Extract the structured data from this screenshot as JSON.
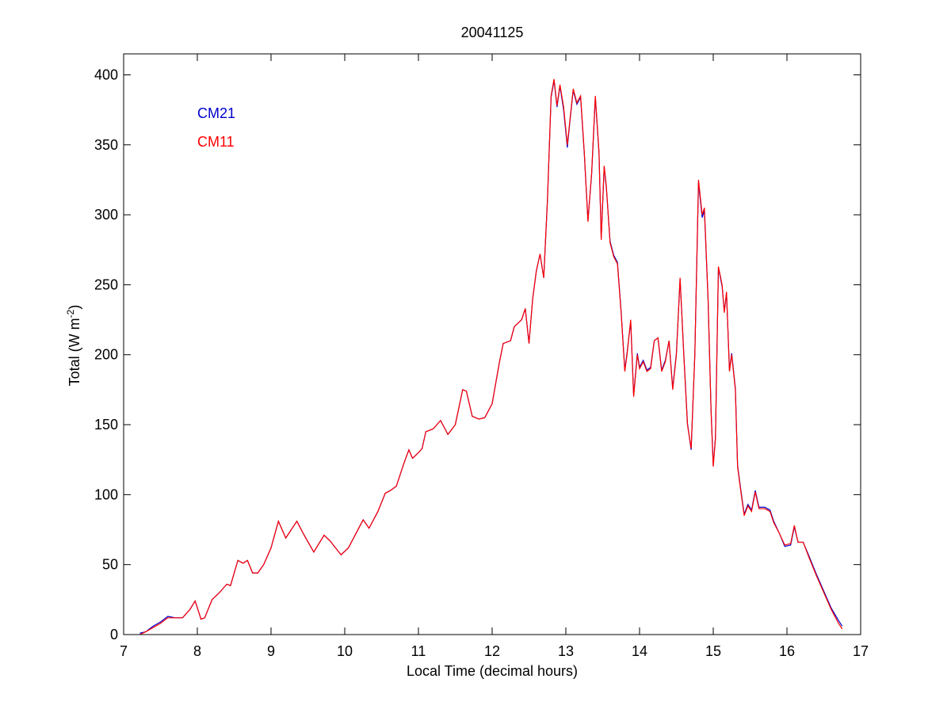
{
  "chart_data": {
    "type": "line",
    "title": "20041125",
    "xlabel": "Local Time (decimal hours)",
    "ylabel": [
      "Total (W m",
      "-2",
      ")"
    ],
    "x": [
      7.22,
      7.3,
      7.4,
      7.5,
      7.6,
      7.7,
      7.8,
      7.9,
      7.97,
      8.05,
      8.1,
      8.2,
      8.3,
      8.4,
      8.45,
      8.55,
      8.62,
      8.68,
      8.75,
      8.82,
      8.9,
      9.0,
      9.1,
      9.2,
      9.35,
      9.45,
      9.58,
      9.72,
      9.8,
      9.95,
      10.05,
      10.15,
      10.25,
      10.33,
      10.45,
      10.55,
      10.62,
      10.7,
      10.8,
      10.87,
      10.92,
      11.0,
      11.05,
      11.1,
      11.2,
      11.3,
      11.4,
      11.5,
      11.6,
      11.65,
      11.73,
      11.82,
      11.9,
      12.0,
      12.05,
      12.1,
      12.15,
      12.25,
      12.3,
      12.4,
      12.45,
      12.5,
      12.55,
      12.6,
      12.65,
      12.7,
      12.75,
      12.8,
      12.84,
      12.88,
      12.92,
      12.97,
      13.02,
      13.05,
      13.1,
      13.15,
      13.2,
      13.25,
      13.3,
      13.35,
      13.4,
      13.45,
      13.48,
      13.52,
      13.55,
      13.6,
      13.65,
      13.7,
      13.75,
      13.8,
      13.83,
      13.88,
      13.92,
      13.97,
      14.0,
      14.05,
      14.1,
      14.15,
      14.2,
      14.25,
      14.3,
      14.35,
      14.4,
      14.45,
      14.5,
      14.55,
      14.6,
      14.65,
      14.7,
      14.75,
      14.8,
      14.85,
      14.88,
      14.93,
      14.97,
      15.0,
      15.03,
      15.07,
      15.12,
      15.15,
      15.18,
      15.22,
      15.25,
      15.3,
      15.33,
      15.38,
      15.42,
      15.47,
      15.52,
      15.57,
      15.62,
      15.7,
      15.77,
      15.82,
      15.9,
      15.97,
      16.05,
      16.1,
      16.15,
      16.22,
      16.3,
      16.4,
      16.5,
      16.6,
      16.7,
      16.75
    ],
    "series": [
      {
        "name": "CM21",
        "color": "#0000cc",
        "values": [
          1,
          2,
          6,
          9,
          13,
          12,
          12,
          18,
          24,
          11,
          12,
          25,
          30,
          36,
          35,
          53,
          51,
          53,
          44,
          44,
          50,
          62,
          81,
          69,
          81,
          71,
          59,
          71,
          67,
          57,
          62,
          72,
          82,
          76,
          88,
          101,
          103,
          106,
          122,
          132,
          126,
          130,
          133,
          145,
          147,
          153,
          143,
          150,
          175,
          174,
          156,
          154,
          155,
          165,
          180,
          195,
          208,
          210,
          220,
          225,
          233,
          208,
          240,
          260,
          272,
          255,
          310,
          384,
          396,
          377,
          392,
          375,
          348,
          364,
          389,
          379,
          384,
          344,
          296,
          329,
          384,
          344,
          283,
          334,
          319,
          281,
          271,
          266,
          231,
          189,
          201,
          224,
          171,
          201,
          191,
          196,
          189,
          191,
          210,
          212,
          189,
          196,
          210,
          176,
          201,
          254,
          201,
          151,
          132,
          200,
          323,
          298,
          303,
          239,
          161,
          121,
          141,
          262,
          249,
          231,
          244,
          189,
          201,
          176,
          121,
          101,
          86,
          93,
          89,
          103,
          91,
          91,
          89,
          81,
          72,
          63,
          64,
          77,
          66,
          66,
          56,
          43,
          31,
          19,
          10,
          6
        ]
      },
      {
        "name": "CM11",
        "color": "#ff0000",
        "values": [
          0,
          2,
          5,
          8,
          12,
          12,
          12,
          18,
          24,
          11,
          12,
          25,
          30,
          36,
          35,
          53,
          51,
          53,
          44,
          44,
          50,
          62,
          81,
          69,
          81,
          71,
          59,
          71,
          67,
          57,
          62,
          72,
          82,
          76,
          88,
          101,
          103,
          106,
          122,
          132,
          126,
          130,
          133,
          145,
          147,
          153,
          143,
          150,
          175,
          174,
          156,
          154,
          155,
          165,
          180,
          195,
          208,
          210,
          220,
          225,
          233,
          208,
          240,
          260,
          272,
          255,
          310,
          385,
          397,
          378,
          393,
          377,
          350,
          365,
          390,
          380,
          385,
          345,
          295,
          330,
          385,
          345,
          282,
          335,
          320,
          280,
          270,
          265,
          230,
          188,
          200,
          225,
          170,
          200,
          190,
          195,
          188,
          190,
          210,
          212,
          188,
          195,
          210,
          175,
          200,
          255,
          200,
          150,
          133,
          200,
          325,
          300,
          305,
          240,
          160,
          120,
          140,
          263,
          250,
          230,
          245,
          188,
          200,
          175,
          120,
          100,
          85,
          92,
          88,
          102,
          90,
          90,
          88,
          80,
          72,
          64,
          65,
          78,
          66,
          66,
          55,
          42,
          30,
          18,
          8,
          4
        ]
      }
    ],
    "xlim": [
      7,
      17
    ],
    "xticks": [
      7,
      8,
      9,
      10,
      11,
      12,
      13,
      14,
      15,
      16,
      17
    ],
    "ylim": [
      0,
      415
    ],
    "yticks": [
      0,
      50,
      100,
      150,
      200,
      250,
      300,
      350,
      400
    ]
  }
}
